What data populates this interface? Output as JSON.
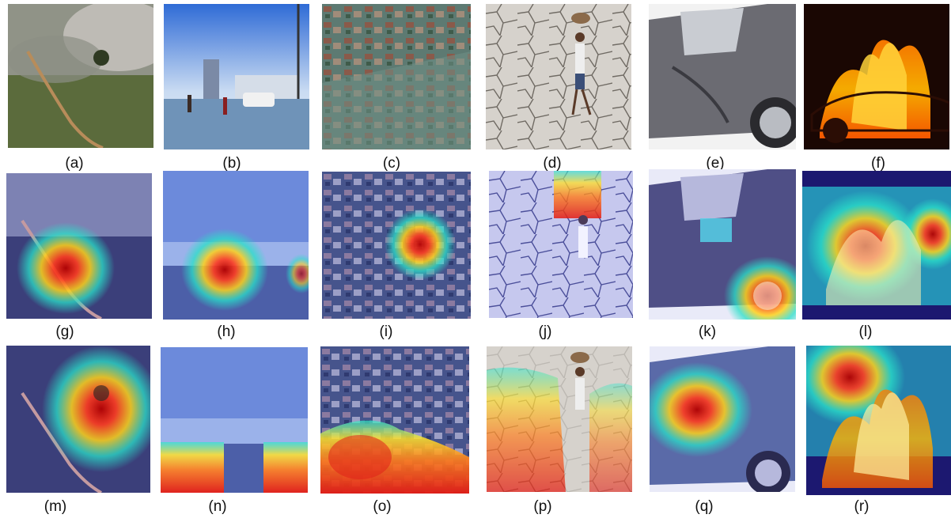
{
  "captions": [
    "(a)",
    "(b)",
    "(c)",
    "(d)",
    "(e)",
    "(f)",
    "(g)",
    "(h)",
    "(i)",
    "(j)",
    "(k)",
    "(l)",
    "(m)",
    "(n)",
    "(o)",
    "(p)",
    "(q)",
    "(r)"
  ],
  "rows": [
    {
      "role": "original-images",
      "panels": [
        "forest-fire",
        "flooded-street",
        "flooded-town-aerial",
        "drought-cracked-earth",
        "damaged-car",
        "burning-car"
      ]
    },
    {
      "role": "heatmap-overlay-1",
      "panels": [
        "forest-fire",
        "flooded-street",
        "flooded-town-aerial",
        "drought-cracked-earth",
        "damaged-car",
        "burning-car"
      ]
    },
    {
      "role": "heatmap-overlay-2",
      "panels": [
        "forest-fire",
        "flooded-street",
        "flooded-town-aerial",
        "drought-cracked-earth",
        "damaged-car",
        "burning-car"
      ]
    }
  ]
}
